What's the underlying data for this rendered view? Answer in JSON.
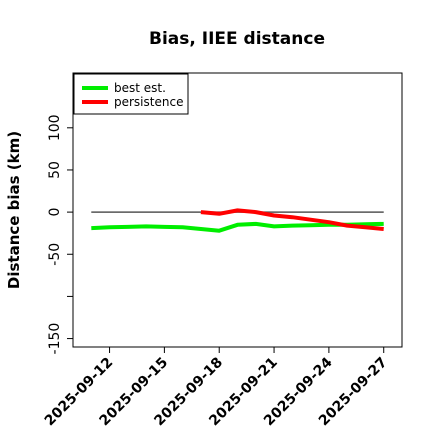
{
  "chart_data": {
    "type": "line",
    "title": "Bias, IIEE distance",
    "xlabel": "",
    "ylabel": "Distance bias (km)",
    "x_type": "date",
    "xlim": [
      "2025-09-10",
      "2025-09-28"
    ],
    "ylim": [
      -160,
      165
    ],
    "x_ticks": [
      "2025-09-12",
      "2025-09-15",
      "2025-09-18",
      "2025-09-21",
      "2025-09-24",
      "2025-09-27"
    ],
    "y_ticks": [
      -150,
      -100,
      -50,
      0,
      50,
      100
    ],
    "y_tick_labels": [
      "-150",
      "",
      "-50",
      "0",
      "50",
      "100"
    ],
    "grid": false,
    "legend_position": "top-left",
    "reference_line": {
      "y": 0,
      "x_range": [
        "2025-09-11",
        "2025-09-27"
      ],
      "color": "#555555"
    },
    "series": [
      {
        "name": "best est.",
        "color": "#00ee00",
        "points": [
          [
            "2025-09-11",
            -19
          ],
          [
            "2025-09-12",
            -18
          ],
          [
            "2025-09-13",
            -17.5
          ],
          [
            "2025-09-14",
            -17
          ],
          [
            "2025-09-15",
            -17.5
          ],
          [
            "2025-09-16",
            -18
          ],
          [
            "2025-09-17",
            -20
          ],
          [
            "2025-09-18",
            -22
          ],
          [
            "2025-09-19",
            -15
          ],
          [
            "2025-09-20",
            -14
          ],
          [
            "2025-09-21",
            -17
          ],
          [
            "2025-09-22",
            -16
          ],
          [
            "2025-09-23",
            -15.5
          ],
          [
            "2025-09-24",
            -15
          ],
          [
            "2025-09-25",
            -15
          ],
          [
            "2025-09-26",
            -14.5
          ],
          [
            "2025-09-27",
            -14
          ]
        ]
      },
      {
        "name": "persistence",
        "color": "#ff0000",
        "points": [
          [
            "2025-09-17",
            0
          ],
          [
            "2025-09-18",
            -2
          ],
          [
            "2025-09-19",
            2
          ],
          [
            "2025-09-20",
            0
          ],
          [
            "2025-09-21",
            -4
          ],
          [
            "2025-09-22",
            -6
          ],
          [
            "2025-09-23",
            -9
          ],
          [
            "2025-09-24",
            -12
          ],
          [
            "2025-09-25",
            -16
          ],
          [
            "2025-09-26",
            -18
          ],
          [
            "2025-09-27",
            -20
          ]
        ]
      }
    ]
  }
}
